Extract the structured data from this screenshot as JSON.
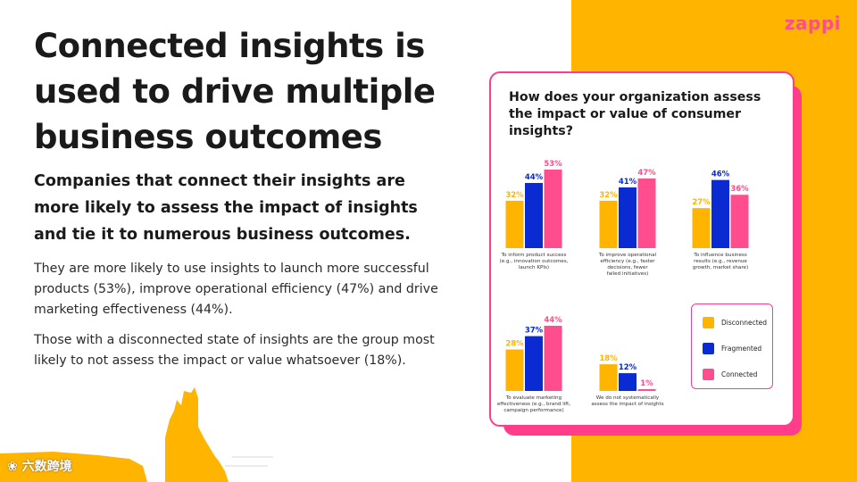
{
  "brand": {
    "logo": "zappi"
  },
  "heading": {
    "title": "Connected insights is used to drive multiple business outcomes",
    "subtitle": "Companies that connect their insights are more likely to assess the impact of insights and tie it to numerous business outcomes.",
    "paragraph1": "They are more likely to use insights to launch more successful products (53%), improve operational efficiency (47%) and drive marketing effectiveness (44%).",
    "paragraph2": "Those with a disconnected state of insights are the group most likely to not assess the impact or value whatsoever (18%)."
  },
  "watermark": "六数跨境",
  "colors": {
    "disconnected": "#ffb400",
    "fragmented": "#0a2bd1",
    "connected": "#ff4d8d",
    "accent_panel": "#ffb400",
    "card_border": "#ff3d8a"
  },
  "chart_data": {
    "type": "bar",
    "title": "How does your organization assess the impact or value of consumer insights?",
    "legend_position": "bottom-right",
    "unit": "%",
    "series": [
      {
        "name": "Disconnected",
        "color": "#ffb400",
        "values": [
          32,
          32,
          27,
          28,
          18
        ]
      },
      {
        "name": "Fragmented",
        "color": "#0a2bd1",
        "values": [
          44,
          41,
          46,
          37,
          12
        ]
      },
      {
        "name": "Connected",
        "color": "#ff4d8d",
        "values": [
          53,
          47,
          36,
          44,
          1
        ]
      }
    ],
    "categories": [
      [
        "To inform product success",
        "(e.g., innovation outcomes,",
        "launch KPIs)"
      ],
      [
        "To improve operational",
        "efficiency (e.g., faster",
        "decisions, fewer",
        "failed initiatives)"
      ],
      [
        "To influence business",
        "results (e.g., revenue",
        "growth, market share)"
      ],
      [
        "To evaluate marketing",
        "effectiveness (e.g., brand lift,",
        "campaign performance)"
      ],
      [
        "We do not systematically",
        "assess the impact of insights"
      ]
    ]
  }
}
